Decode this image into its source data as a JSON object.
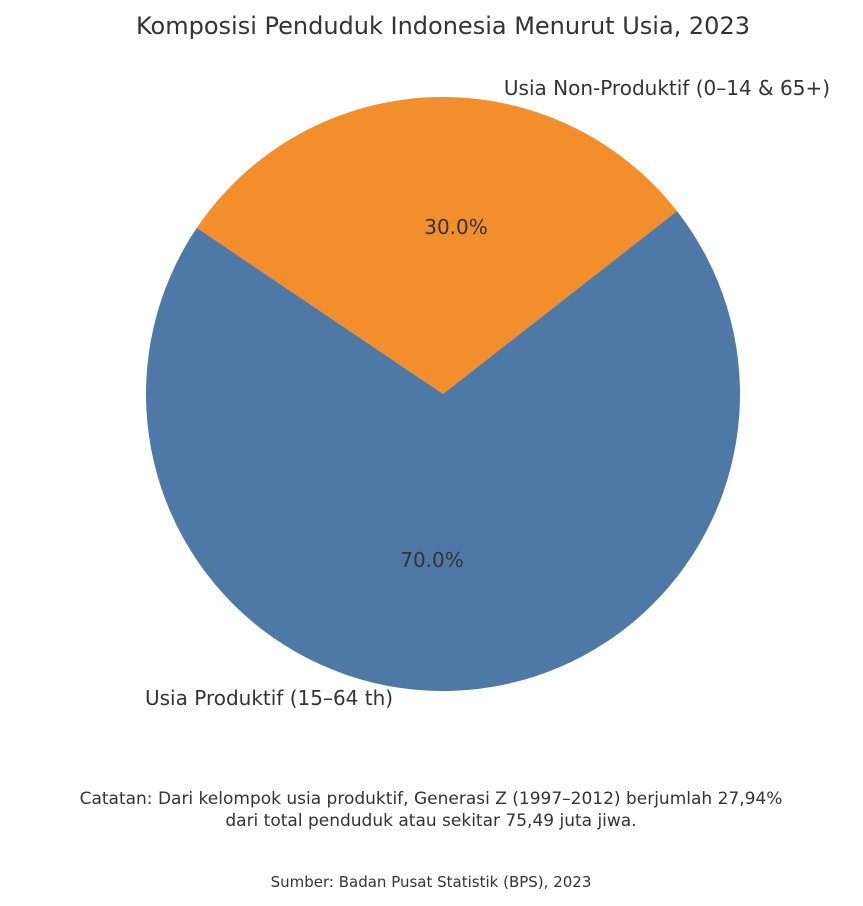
{
  "chart_data": {
    "type": "pie",
    "title": "Komposisi Penduduk Indonesia Menurut Usia, 2023",
    "slices": [
      {
        "label": "Usia Non-Produktif (0–14 & 65+)",
        "value": 30.0,
        "pct_label": "30.0%",
        "color": "#F28E2B"
      },
      {
        "label": "Usia Produktif (15–64 th)",
        "value": 70.0,
        "pct_label": "70.0%",
        "color": "#4E79A7"
      }
    ],
    "note_lines": [
      "Catatan: Dari kelompok usia produktif, Generasi Z (1997–2012) berjumlah 27,94%",
      "dari total penduduk atau sekitar 75,49 juta jiwa."
    ],
    "source": "Sumber: Badan Pusat Statistik (BPS), 2023"
  }
}
